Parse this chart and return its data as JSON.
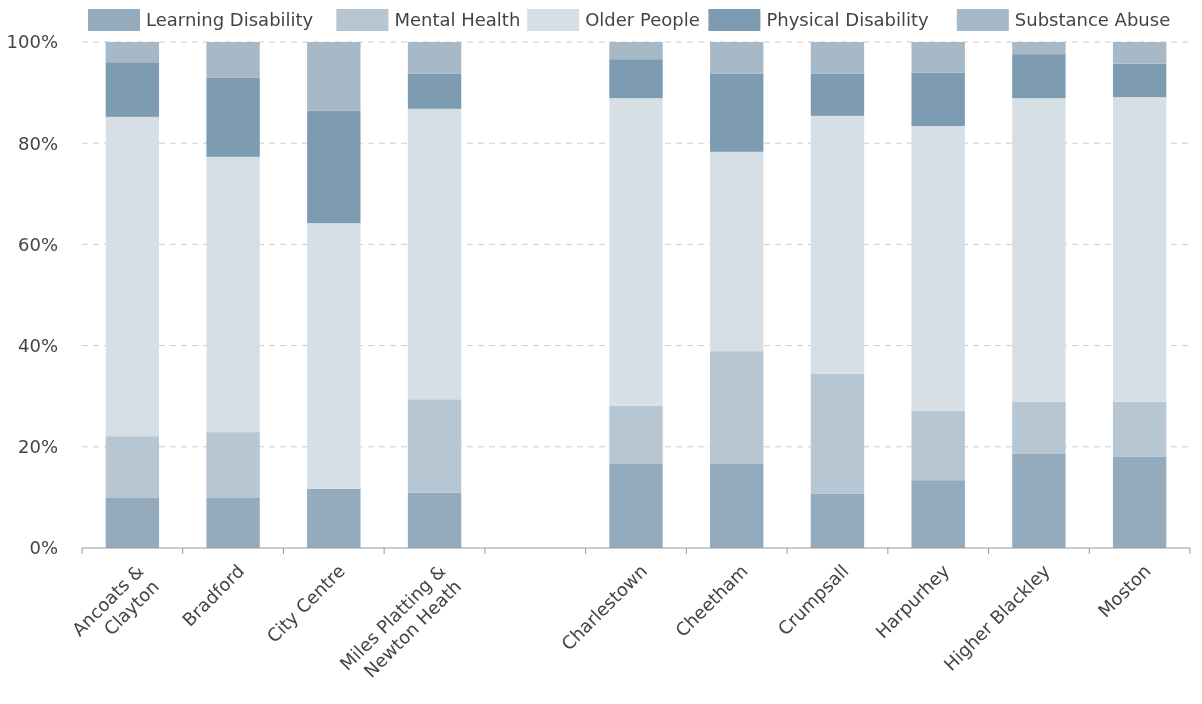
{
  "chart_data": {
    "type": "bar",
    "stacked": true,
    "categories": [
      "Ancoats &\nClayton",
      "Bradford",
      "City Centre",
      "Miles Platting &\nNewton Heath",
      null,
      "Charlestown",
      "Cheetham",
      "Crumpsall",
      "Harpurhey",
      "Higher Blackley",
      "Moston"
    ],
    "series": [
      {
        "name": "Learning Disability",
        "color": "#94aabd",
        "values": [
          10,
          10,
          11.7,
          10.9,
          null,
          16.6,
          16.6,
          10.7,
          13.4,
          18.6,
          18
        ]
      },
      {
        "name": "Mental Health",
        "color": "#b6c6d2",
        "values": [
          12.1,
          12.9,
          0,
          18.5,
          null,
          11.5,
          22.3,
          23.7,
          13.7,
          10.3,
          10.9
        ]
      },
      {
        "name": "Older People",
        "color": "#d7dfe6",
        "values": [
          63.1,
          54.4,
          52.5,
          57.4,
          null,
          60.8,
          39.4,
          51,
          56.3,
          60,
          60.2
        ]
      },
      {
        "name": "Physical Disability",
        "color": "#7d9cb1",
        "values": [
          10.8,
          15.6,
          22.2,
          6.9,
          null,
          7.7,
          15.4,
          8.3,
          10.5,
          8.7,
          6.6
        ]
      },
      {
        "name": "Substance Abuse",
        "color": "#a7b8c7",
        "values": [
          4,
          7.1,
          13.6,
          6.3,
          null,
          3.4,
          6.3,
          6.3,
          6.1,
          2.4,
          4.3
        ]
      }
    ],
    "ylim": [
      0,
      100
    ],
    "yticks": [
      {
        "value": 0,
        "label": "0%"
      },
      {
        "value": 20,
        "label": "20%"
      },
      {
        "value": 40,
        "label": "40%"
      },
      {
        "value": 60,
        "label": "60%"
      },
      {
        "value": 80,
        "label": "80%"
      },
      {
        "value": 100,
        "label": "100%"
      }
    ],
    "grid": "y",
    "legend": "top"
  }
}
